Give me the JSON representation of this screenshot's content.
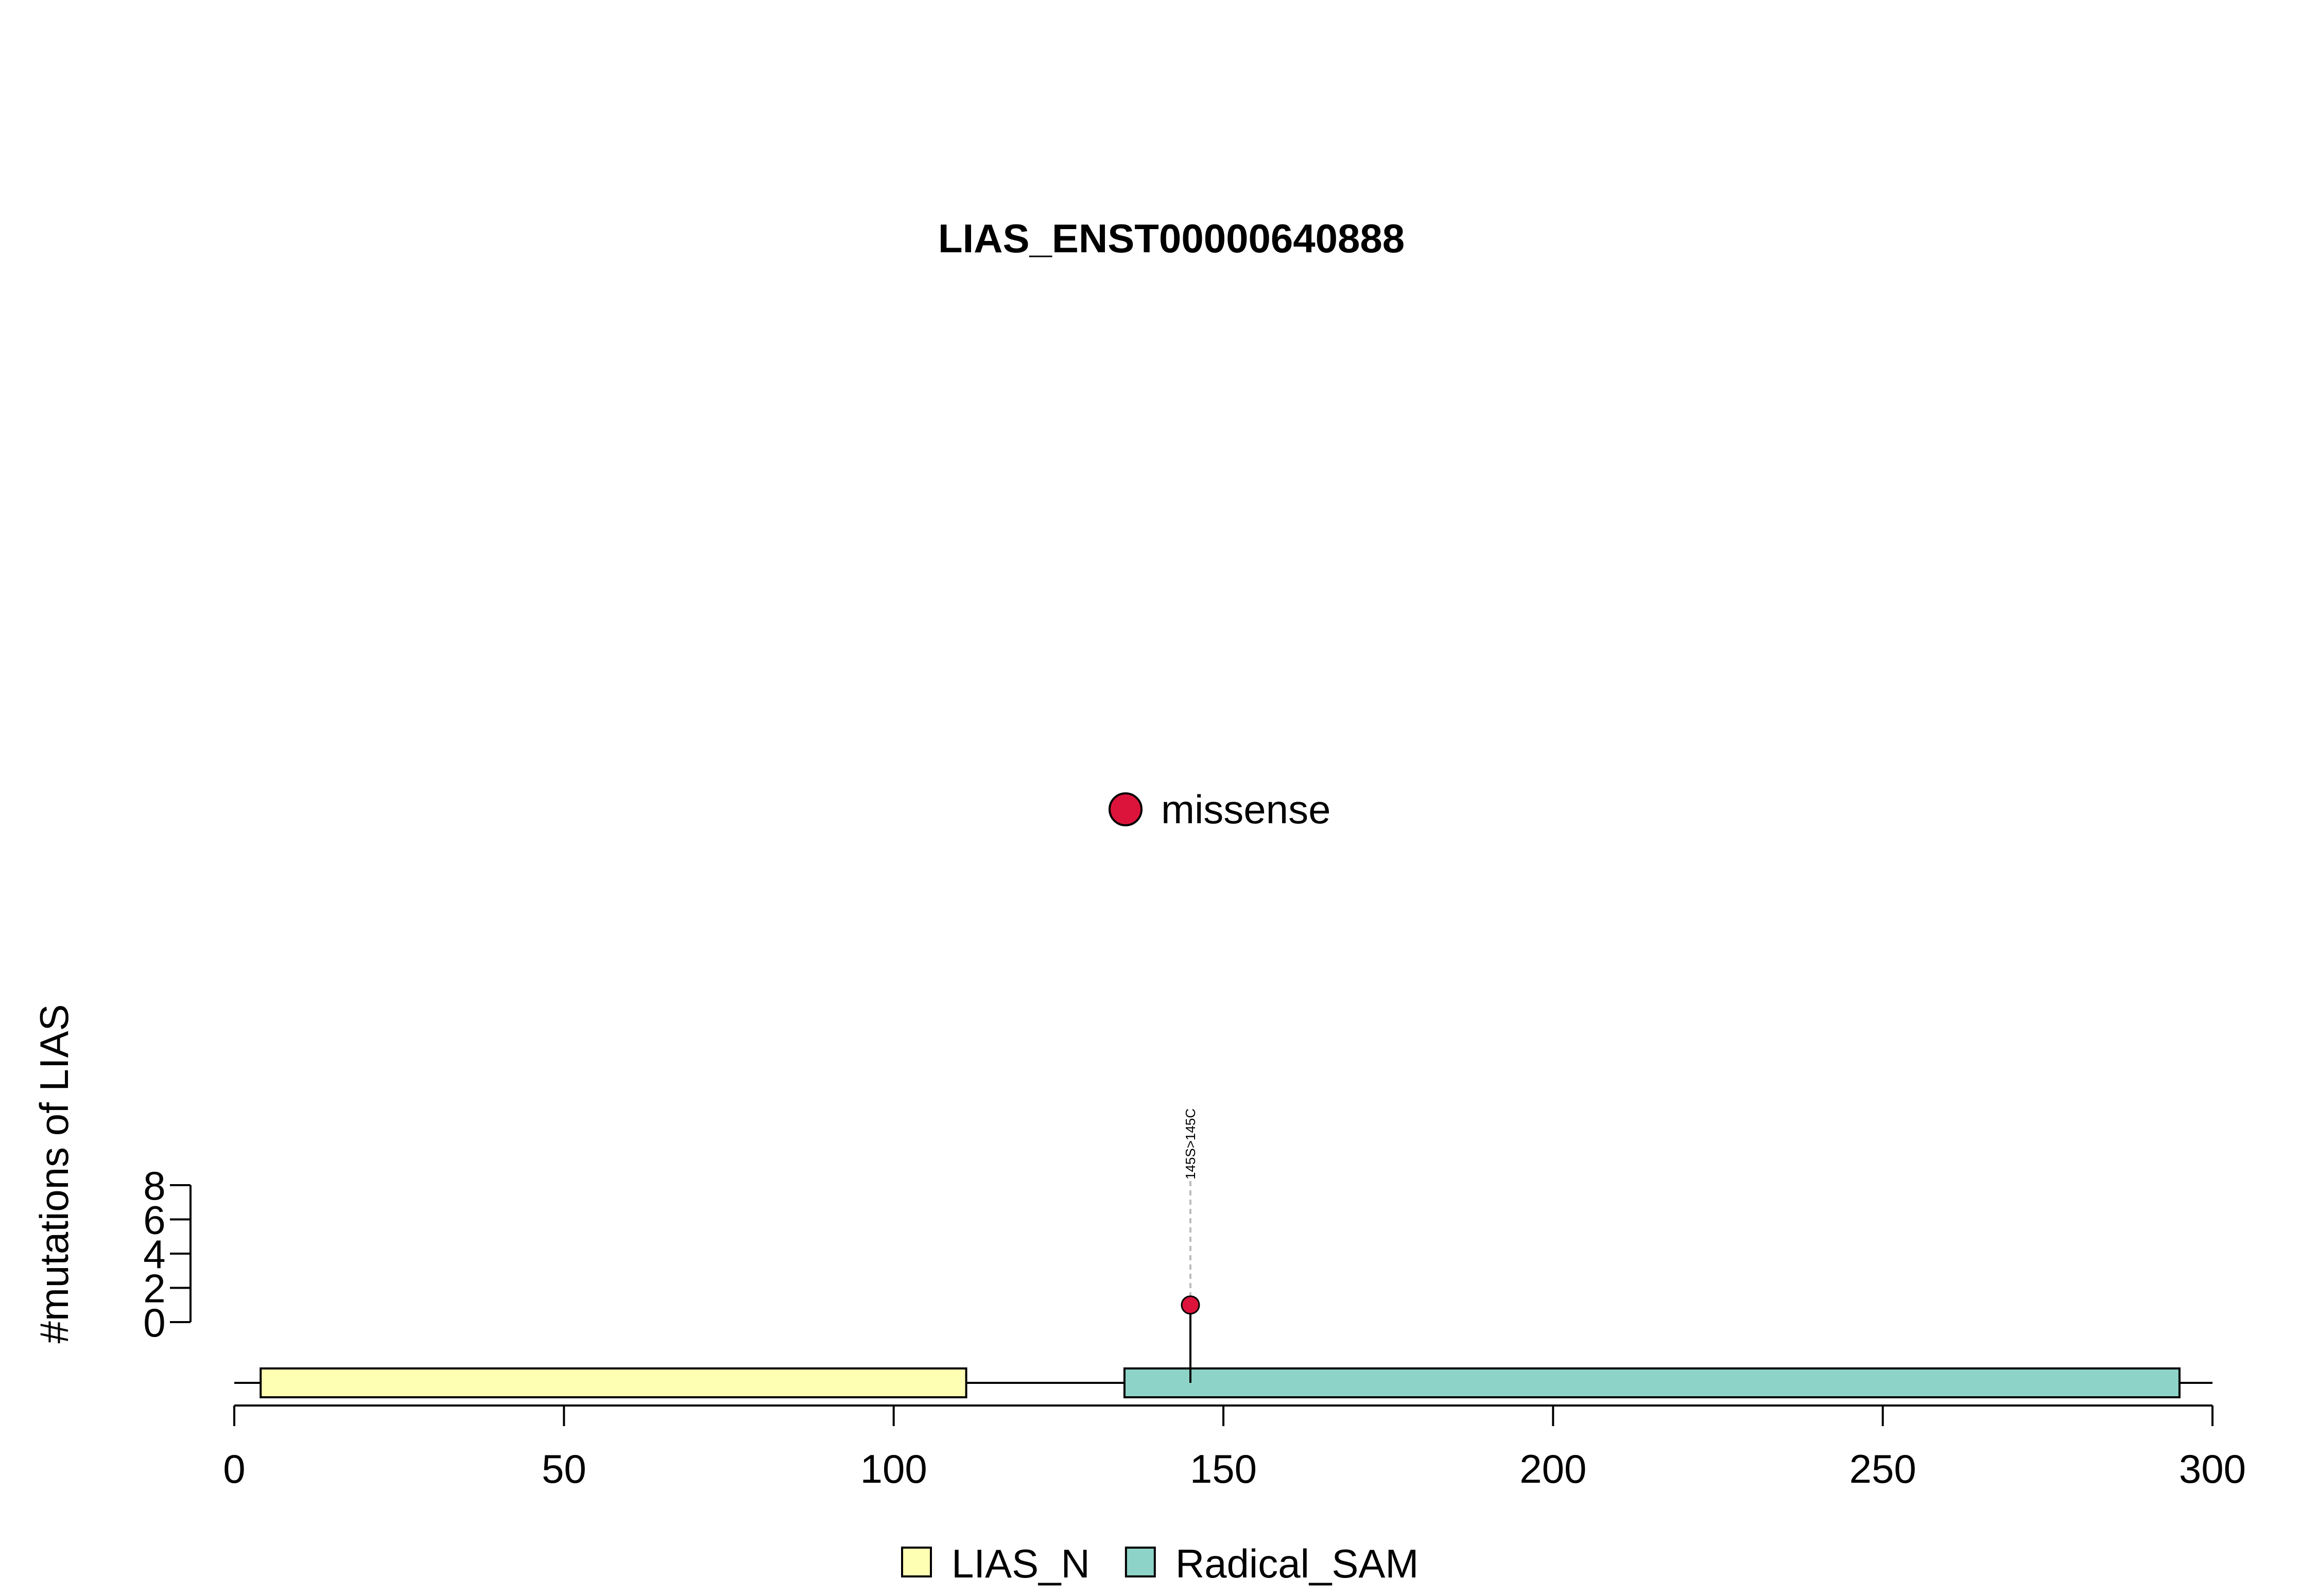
{
  "chart_data": {
    "type": "lollipop",
    "title": "LIAS_ENST00000640888",
    "xlabel": "",
    "ylabel": "#mutations of LIAS",
    "xlim": [
      0,
      300
    ],
    "x_ticks": [
      0,
      50,
      100,
      150,
      200,
      250,
      300
    ],
    "ylim": [
      0,
      8
    ],
    "y_ticks": [
      0,
      2,
      4,
      6,
      8
    ],
    "protein_length": 300,
    "domains": [
      {
        "name": "LIAS_N",
        "start": 4,
        "end": 111,
        "color": "#FFFFB3"
      },
      {
        "name": "Radical_SAM",
        "start": 135,
        "end": 295,
        "color": "#8DD3C7"
      }
    ],
    "mutations": [
      {
        "position": 145,
        "count": 1,
        "label": "145S>145C",
        "type": "missense",
        "color": "#DC143C"
      }
    ],
    "mutation_legend": [
      {
        "label": "missense",
        "color": "#DC143C"
      }
    ],
    "domain_legend": [
      {
        "label": "LIAS_N",
        "color": "#FFFFB3"
      },
      {
        "label": "Radical_SAM",
        "color": "#8DD3C7"
      }
    ]
  }
}
